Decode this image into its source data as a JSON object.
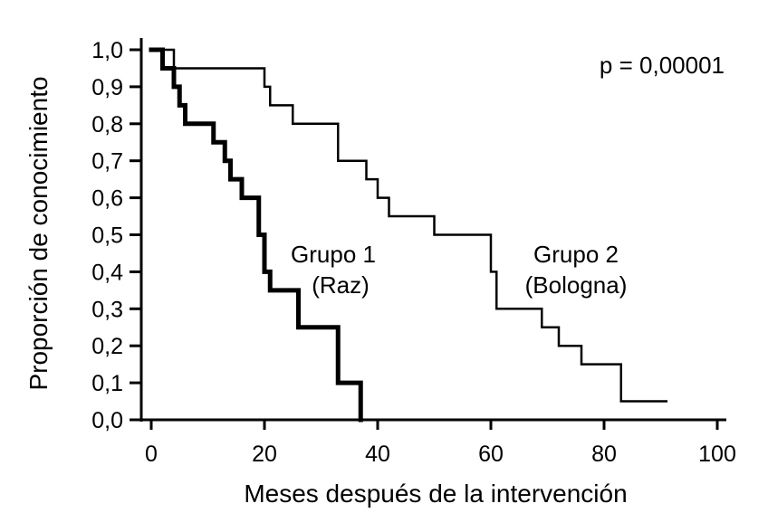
{
  "chart_data": {
    "type": "line",
    "title": "",
    "xlabel": "Meses después de la intervención",
    "ylabel": "Proporción de conocimiento",
    "xlim": [
      -1,
      101
    ],
    "ylim": [
      0,
      1
    ],
    "x_ticks": [
      0,
      20,
      40,
      60,
      80,
      100
    ],
    "x_tick_labels": [
      "0",
      "20",
      "40",
      "60",
      "80",
      "100"
    ],
    "y_ticks": [
      0,
      0.1,
      0.2,
      0.3,
      0.4,
      0.5,
      0.6,
      0.7,
      0.8,
      0.9,
      1.0
    ],
    "y_tick_labels": [
      "0,0",
      "0,1",
      "0,2",
      "0,3",
      "0,4",
      "0,5",
      "0,6",
      "0,7",
      "0,8",
      "0,9",
      "1,0"
    ],
    "grid": false,
    "step": true,
    "annotation_p": "p = 0,00001",
    "series": [
      {
        "name": "Grupo 1",
        "label_line1": "Grupo 1",
        "label_line2": "(Raz)",
        "color": "#000000",
        "x": [
          0,
          2,
          3,
          4,
          5,
          6,
          11,
          12,
          13,
          14,
          16,
          17,
          19,
          20,
          21,
          22,
          26,
          27,
          33,
          35,
          37
        ],
        "y": [
          1.0,
          0.95,
          0.95,
          0.9,
          0.85,
          0.8,
          0.75,
          0.75,
          0.7,
          0.65,
          0.6,
          0.6,
          0.5,
          0.4,
          0.35,
          0.35,
          0.25,
          0.25,
          0.1,
          0.1,
          0.0
        ]
      },
      {
        "name": "Grupo 2",
        "label_line1": "Grupo 2",
        "label_line2": "(Bologna)",
        "color": "#000000",
        "x": [
          0,
          4,
          20,
          21,
          22,
          25,
          33,
          38,
          40,
          42,
          45,
          50,
          60,
          61,
          69,
          72,
          76,
          83,
          91
        ],
        "y": [
          1.0,
          0.95,
          0.9,
          0.85,
          0.85,
          0.8,
          0.7,
          0.65,
          0.6,
          0.55,
          0.55,
          0.5,
          0.4,
          0.3,
          0.25,
          0.2,
          0.15,
          0.05,
          0.05
        ]
      }
    ]
  }
}
